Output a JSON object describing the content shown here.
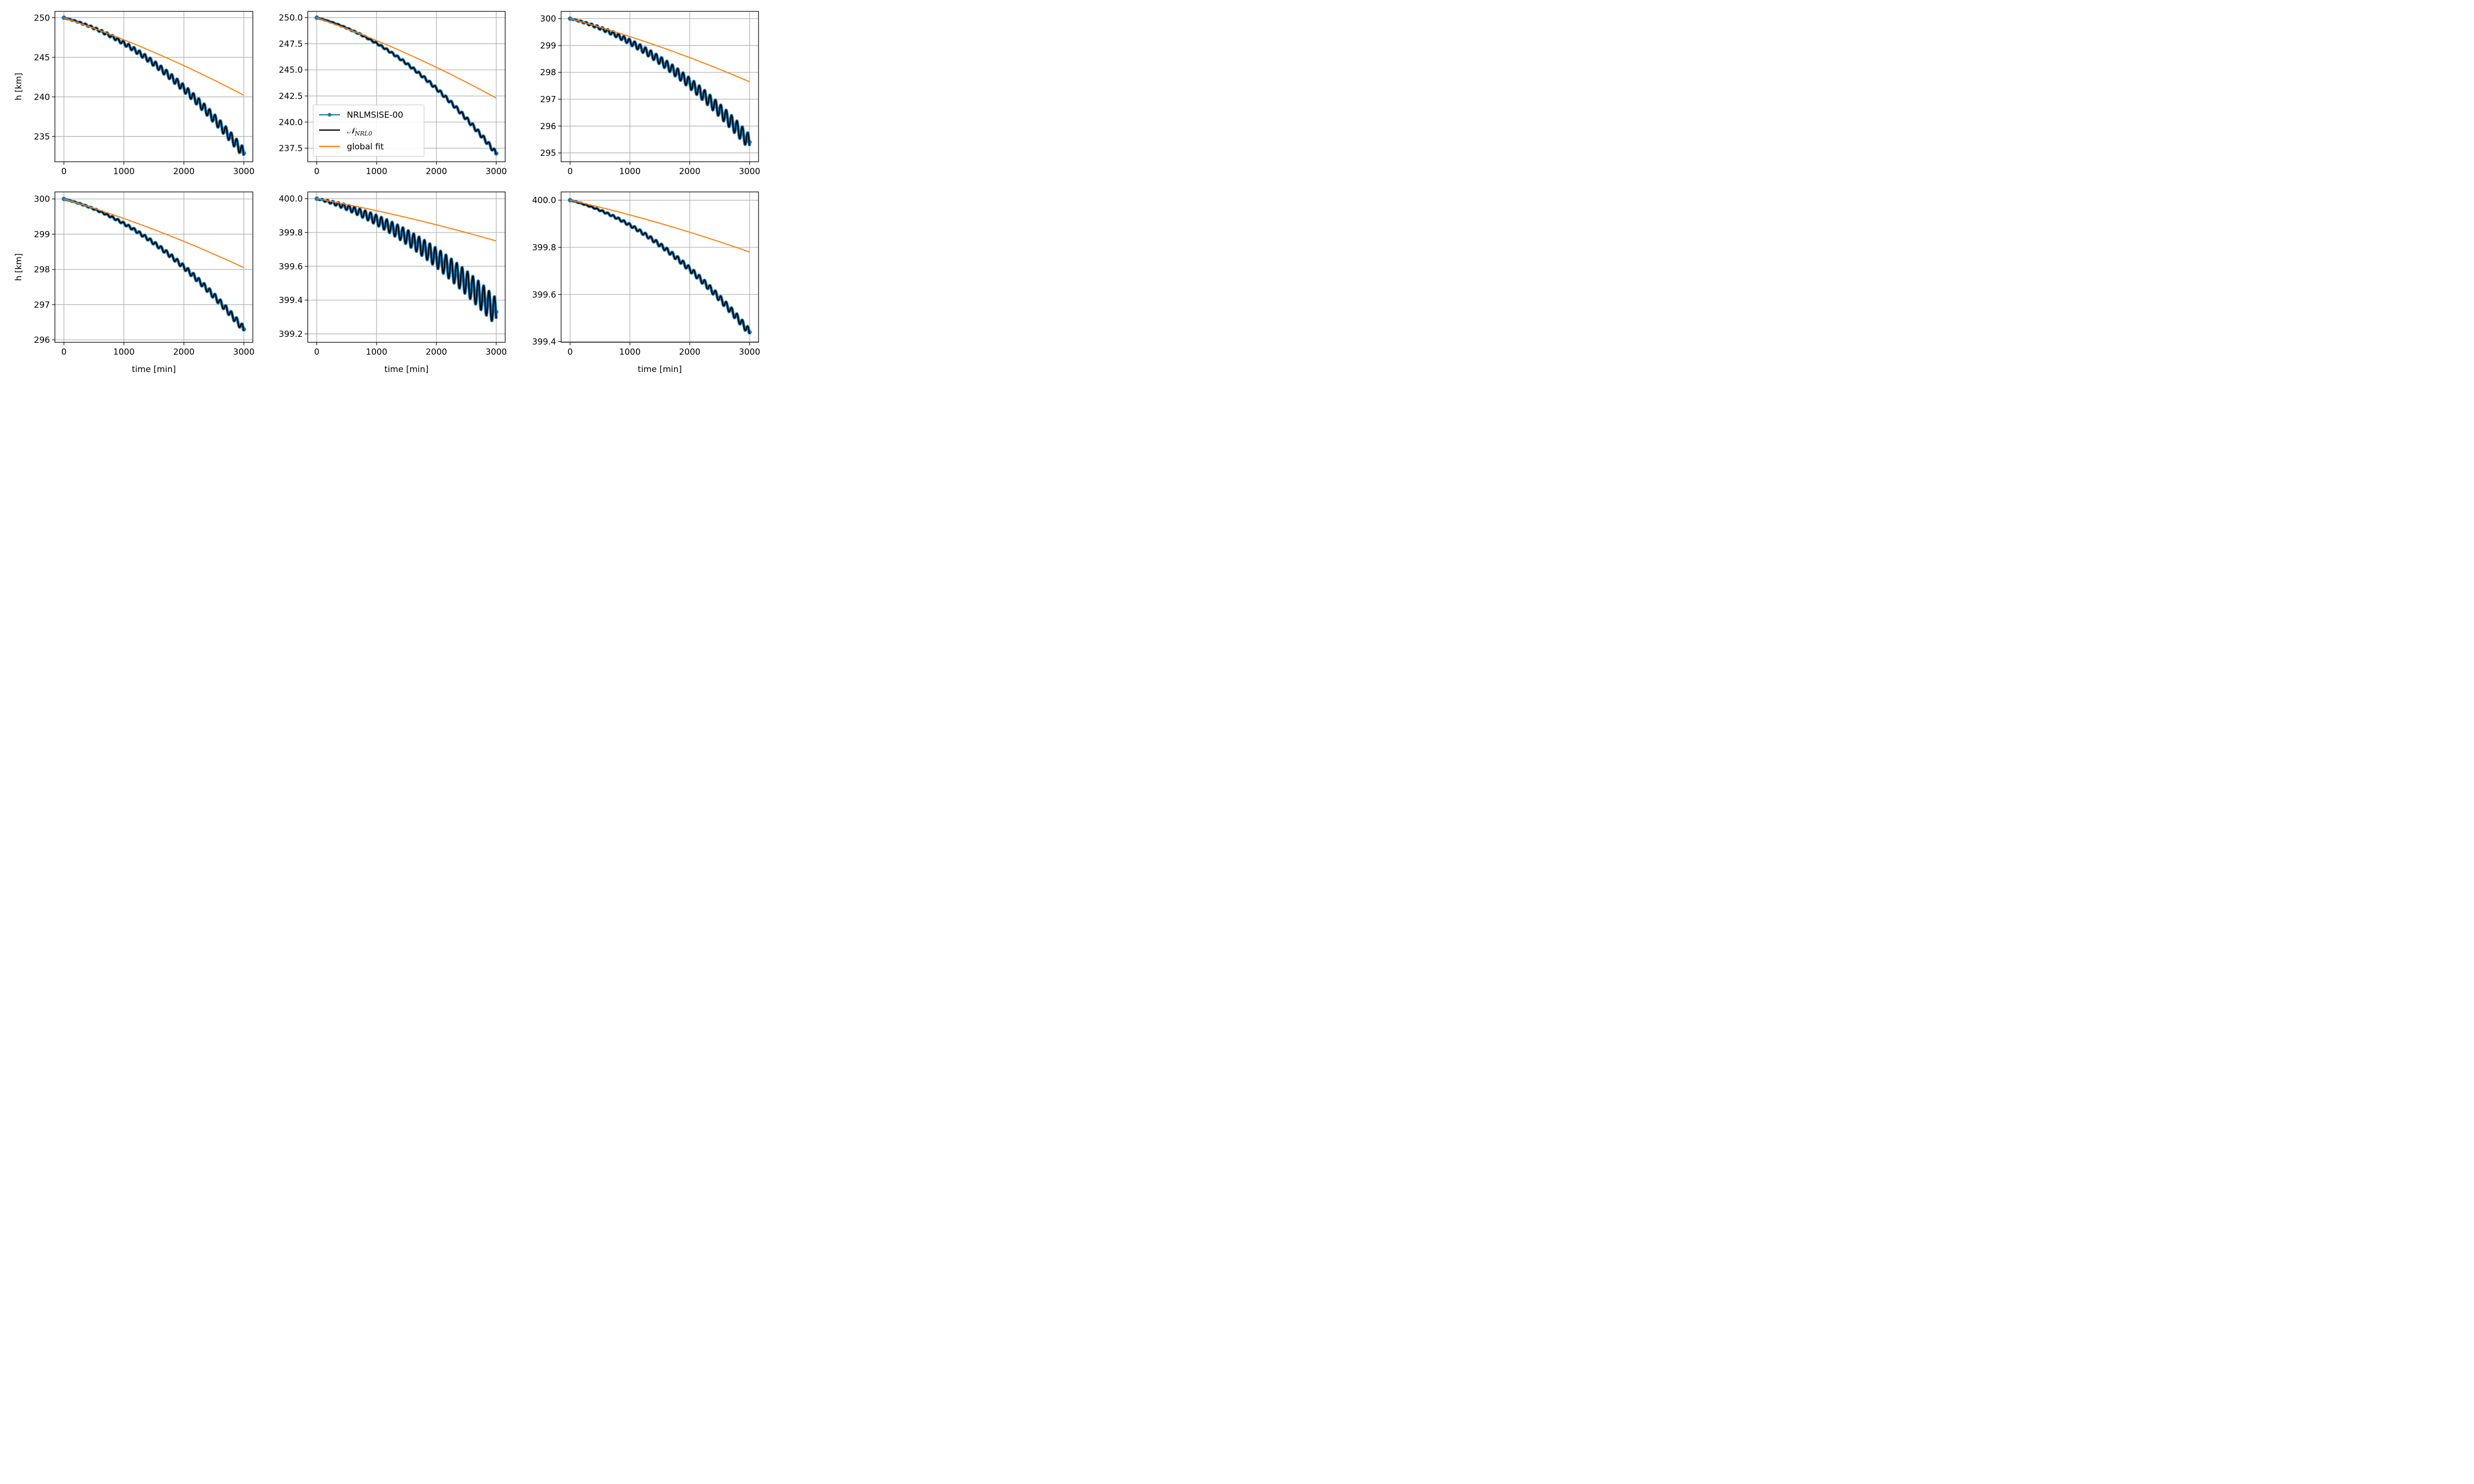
{
  "chart_data": [
    {
      "type": "line",
      "ylabel": "h [km]",
      "xlabel": "",
      "xlim": [
        -150,
        3150
      ],
      "ylim": [
        231.8,
        250.8
      ],
      "xticks": [
        "0",
        "1000",
        "2000",
        "3000"
      ],
      "yticks": [
        "235",
        "240",
        "245",
        "250"
      ],
      "series": [
        {
          "name": "NRLMSISE-00",
          "x": [
            0,
            3000
          ],
          "y": [
            250.0,
            232.9
          ],
          "osc_amplitude_end": 1.3
        },
        {
          "name": "N_NRL0",
          "x": [
            0,
            3000
          ],
          "y": [
            250.0,
            232.9
          ],
          "osc_amplitude_end": 1.3
        },
        {
          "name": "global fit",
          "x": [
            0,
            3000
          ],
          "y": [
            250.0,
            240.2
          ]
        }
      ]
    },
    {
      "type": "line",
      "ylabel": "",
      "xlabel": "",
      "xlim": [
        -150,
        3150
      ],
      "ylim": [
        236.2,
        250.6
      ],
      "xticks": [
        "0",
        "1000",
        "2000",
        "3000"
      ],
      "yticks": [
        "237.5",
        "240.0",
        "242.5",
        "245.0",
        "247.5",
        "250.0"
      ],
      "series": [
        {
          "name": "NRLMSISE-00",
          "x": [
            0,
            3000
          ],
          "y": [
            250.0,
            237.0
          ],
          "osc_amplitude_end": 0.4
        },
        {
          "name": "N_NRL0",
          "x": [
            0,
            3000
          ],
          "y": [
            250.0,
            237.0
          ],
          "osc_amplitude_end": 0.4
        },
        {
          "name": "global fit",
          "x": [
            0,
            3000
          ],
          "y": [
            250.0,
            242.3
          ]
        }
      ]
    },
    {
      "type": "line",
      "ylabel": "",
      "xlabel": "",
      "xlim": [
        -150,
        3150
      ],
      "ylim": [
        294.67,
        300.27
      ],
      "xticks": [
        "0",
        "1000",
        "2000",
        "3000"
      ],
      "yticks": [
        "295",
        "296",
        "297",
        "298",
        "299",
        "300"
      ],
      "series": [
        {
          "name": "NRLMSISE-00",
          "x": [
            0,
            3000
          ],
          "y": [
            300.0,
            295.4
          ],
          "osc_amplitude_end": 0.55
        },
        {
          "name": "N_NRL0",
          "x": [
            0,
            3000
          ],
          "y": [
            300.0,
            295.4
          ],
          "osc_amplitude_end": 0.55
        },
        {
          "name": "global fit",
          "x": [
            0,
            3000
          ],
          "y": [
            300.0,
            297.65
          ]
        }
      ]
    },
    {
      "type": "line",
      "ylabel": "h [km]",
      "xlabel": "time [min]",
      "xlim": [
        -150,
        3150
      ],
      "ylim": [
        295.93,
        300.2
      ],
      "xticks": [
        "0",
        "1000",
        "2000",
        "3000"
      ],
      "yticks": [
        "296",
        "297",
        "298",
        "299",
        "300"
      ],
      "series": [
        {
          "name": "NRLMSISE-00",
          "x": [
            0,
            3000
          ],
          "y": [
            300.0,
            296.3
          ],
          "osc_amplitude_end": 0.18
        },
        {
          "name": "N_NRL0",
          "x": [
            0,
            3000
          ],
          "y": [
            300.0,
            296.3
          ],
          "osc_amplitude_end": 0.18
        },
        {
          "name": "global fit",
          "x": [
            0,
            3000
          ],
          "y": [
            300.0,
            298.05
          ]
        }
      ]
    },
    {
      "type": "line",
      "ylabel": "",
      "xlabel": "time [min]",
      "xlim": [
        -150,
        3150
      ],
      "ylim": [
        399.15,
        400.04
      ],
      "xticks": [
        "0",
        "1000",
        "2000",
        "3000"
      ],
      "yticks": [
        "399.2",
        "399.4",
        "399.6",
        "399.8",
        "400.0"
      ],
      "series": [
        {
          "name": "NRLMSISE-00",
          "x": [
            0,
            3000
          ],
          "y": [
            400.0,
            399.33
          ],
          "osc_amplitude_end": 0.16
        },
        {
          "name": "N_NRL0",
          "x": [
            0,
            3000
          ],
          "y": [
            400.0,
            399.33
          ],
          "osc_amplitude_end": 0.16
        },
        {
          "name": "global fit",
          "x": [
            0,
            3000
          ],
          "y": [
            400.0,
            399.75
          ]
        }
      ]
    },
    {
      "type": "line",
      "ylabel": "",
      "xlabel": "time [min]",
      "xlim": [
        -150,
        3150
      ],
      "ylim": [
        399.397,
        400.035
      ],
      "xticks": [
        "0",
        "1000",
        "2000",
        "3000"
      ],
      "yticks": [
        "399.4",
        "399.6",
        "399.8",
        "400.0"
      ],
      "series": [
        {
          "name": "NRLMSISE-00",
          "x": [
            0,
            3000
          ],
          "y": [
            400.0,
            399.44
          ],
          "osc_amplitude_end": 0.03
        },
        {
          "name": "N_NRL0",
          "x": [
            0,
            3000
          ],
          "y": [
            400.0,
            399.44
          ],
          "osc_amplitude_end": 0.03
        },
        {
          "name": "global fit",
          "x": [
            0,
            3000
          ],
          "y": [
            400.0,
            399.78
          ]
        }
      ]
    }
  ],
  "legend": {
    "entries": [
      {
        "label": "NRLMSISE-00",
        "color": "#1f77b4",
        "marker": "dot"
      },
      {
        "label": "N_NRL0",
        "display_main": "𝒩",
        "display_sub": "NRL0",
        "color": "#000000"
      },
      {
        "label": "global fit",
        "color": "#ff7f0e"
      }
    ],
    "location": "lower-left of top-middle panel"
  },
  "colors": {
    "nrlmsise": "#1f77b4",
    "nnrl0": "#000000",
    "global_fit": "#ff7f0e",
    "grid": "#b0b0b0"
  }
}
